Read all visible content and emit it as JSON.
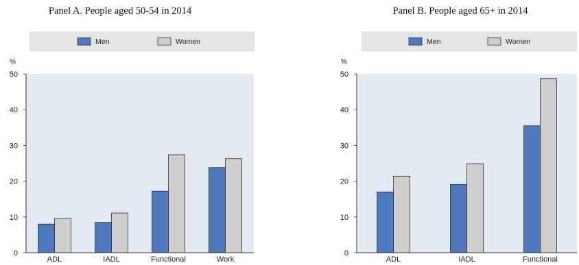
{
  "colors": {
    "men": "#4f79bd",
    "women": "#cfcfcf",
    "plot_bg": "#e4eaf3",
    "legend_bg": "#e5e5e5"
  },
  "chart_data": [
    {
      "type": "bar",
      "title": "Panel A. People aged 50-54 in 2014",
      "unit": "%",
      "categories": [
        "ADL",
        "IADL",
        "Functional",
        "Work"
      ],
      "series": [
        {
          "name": "Men",
          "values": [
            8,
            8.5,
            17.2,
            23.8
          ]
        },
        {
          "name": "Women",
          "values": [
            9.6,
            11.1,
            27.4,
            26.3
          ]
        }
      ],
      "ylim": [
        0,
        50
      ],
      "yticks": [
        0,
        10,
        20,
        30,
        40,
        50
      ],
      "grid": false,
      "legend": "top"
    },
    {
      "type": "bar",
      "title": "Panel B. People aged 65+ in 2014",
      "unit": "%",
      "categories": [
        "ADL",
        "IADL",
        "Functional"
      ],
      "series": [
        {
          "name": "Men",
          "values": [
            17,
            19.1,
            35.5
          ]
        },
        {
          "name": "Women",
          "values": [
            21.4,
            24.9,
            48.7
          ]
        }
      ],
      "ylim": [
        0,
        50
      ],
      "yticks": [
        0,
        10,
        20,
        30,
        40,
        50
      ],
      "grid": false,
      "legend": "top"
    }
  ]
}
